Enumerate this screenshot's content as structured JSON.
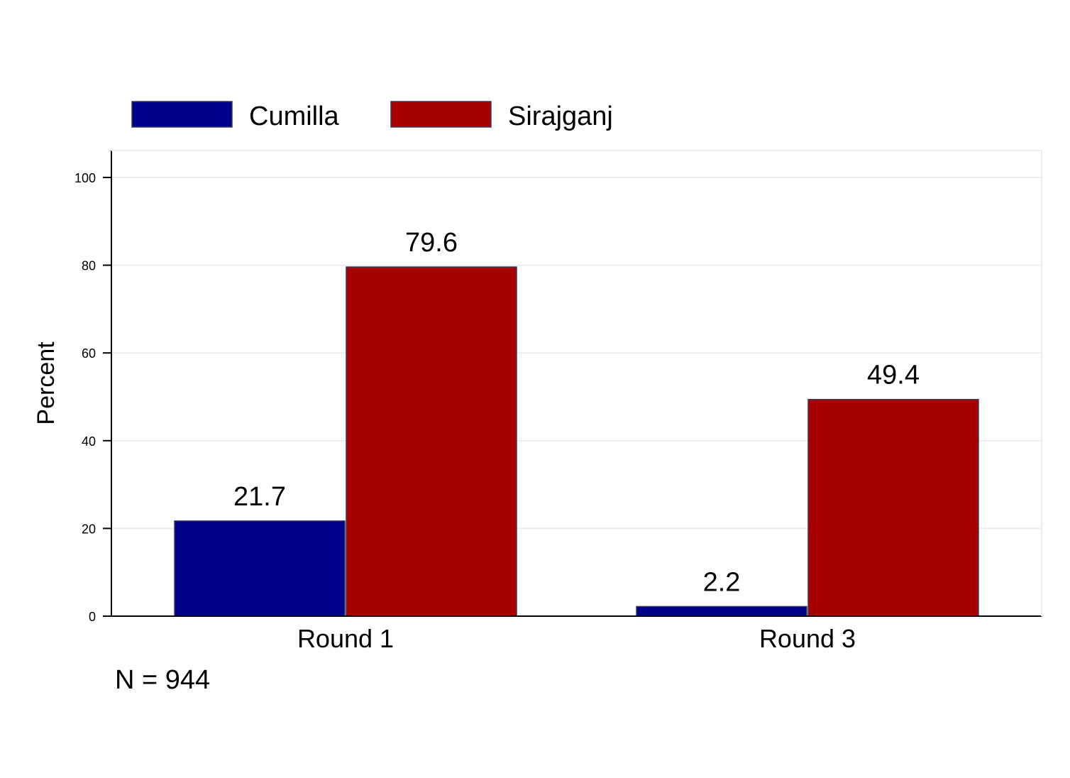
{
  "chart_data": {
    "type": "bar",
    "categories": [
      "Round 1",
      "Round 3"
    ],
    "series": [
      {
        "name": "Cumilla",
        "values": [
          21.7,
          2.2
        ],
        "labels": [
          "21.7",
          "2.2"
        ],
        "color": "#00008b"
      },
      {
        "name": "Sirajganj",
        "values": [
          79.6,
          49.4
        ],
        "labels": [
          "79.6",
          "49.4"
        ],
        "color": "#a80000"
      }
    ],
    "ylabel": "Percent",
    "xlabel": "",
    "ylim": [
      0,
      100
    ],
    "yticks": [
      0,
      20,
      40,
      60,
      80,
      100
    ],
    "ytick_labels": [
      "0",
      "20",
      "40",
      "60",
      "80",
      "100"
    ],
    "grid": true,
    "legend_position": "top-left",
    "note": "N = 944"
  }
}
